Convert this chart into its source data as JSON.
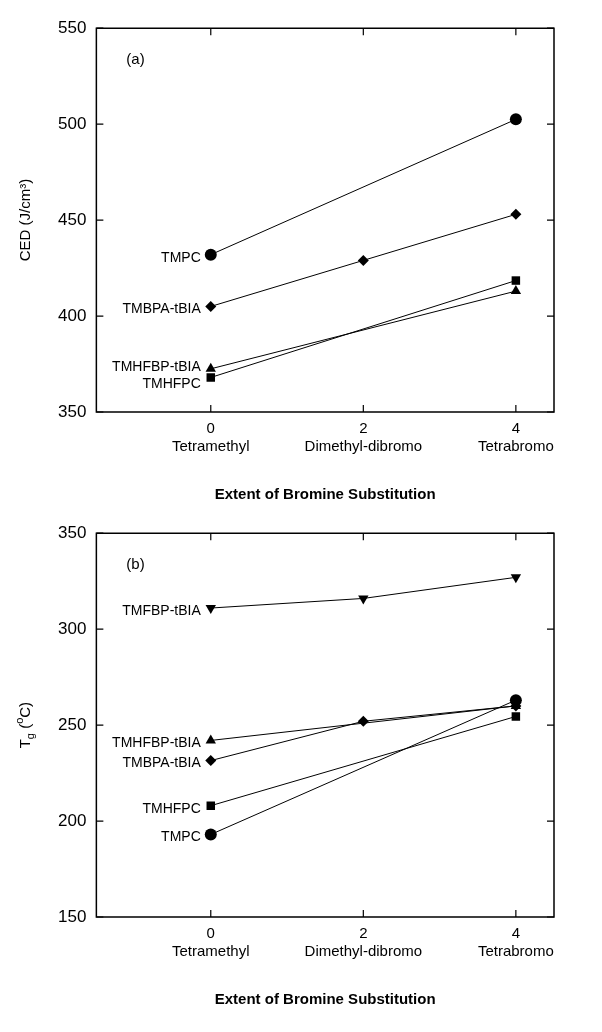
{
  "chart_data": [
    {
      "type": "line",
      "xlabel": "Extent of Bromine Substitution",
      "ylabel": "CED (J/cm³)",
      "annotations": [
        "(a)"
      ],
      "xlim": [
        -1.5,
        4.5
      ],
      "xticks": [
        {
          "value": 0,
          "label": "0\nTetramethyl"
        },
        {
          "value": 2,
          "label": "2\nDimethyl-dibromo"
        },
        {
          "value": 4,
          "label": "4\nTetrabromo"
        }
      ],
      "ylim": [
        350,
        550
      ],
      "yticks": [
        350,
        400,
        450,
        500,
        550
      ],
      "grid": false,
      "legend": false,
      "line_style": "solid",
      "series": [
        {
          "name": "TMPC",
          "color": "#000000",
          "marker": "circle",
          "x": [
            0,
            4
          ],
          "values": [
            432,
            502.5
          ]
        },
        {
          "name": "TMBPA-tBIA",
          "color": "#000000",
          "marker": "diamond",
          "x": [
            0,
            2,
            4
          ],
          "values": [
            405,
            429,
            453
          ]
        },
        {
          "name": "TMHFBP-tBIA",
          "color": "#000000",
          "marker": "triangle",
          "x": [
            0,
            4
          ],
          "values": [
            372.5,
            413
          ]
        },
        {
          "name": "TMHFPC",
          "color": "#000000",
          "marker": "square",
          "x": [
            0,
            4
          ],
          "values": [
            368,
            418.5
          ]
        }
      ]
    },
    {
      "type": "line",
      "xlabel": "Extent of Bromine Substitution",
      "ylabel": "T$_{g}$ ($^{o}$C)",
      "annotations": [
        "(b)"
      ],
      "xlim": [
        -1.5,
        4.5
      ],
      "xticks": [
        {
          "value": 0,
          "label": "0\nTetramethyl"
        },
        {
          "value": 2,
          "label": "2\nDimethyl-dibromo"
        },
        {
          "value": 4,
          "label": "4\nTetrabromo"
        }
      ],
      "ylim": [
        150,
        350
      ],
      "yticks": [
        150,
        200,
        250,
        300,
        350
      ],
      "grid": false,
      "legend": false,
      "line_style": "solid",
      "series": [
        {
          "name": "TMFBP-tBIA",
          "color": "#000000",
          "marker": "triangle-down",
          "x": [
            0,
            2,
            4
          ],
          "values": [
            311,
            316,
            327
          ]
        },
        {
          "name": "TMHFBP-tBIA",
          "color": "#000000",
          "marker": "triangle",
          "x": [
            0,
            4
          ],
          "values": [
            242,
            260
          ]
        },
        {
          "name": "TMBPA-tBIA",
          "color": "#000000",
          "marker": "diamond",
          "x": [
            0,
            2,
            4
          ],
          "values": [
            231.5,
            252,
            260
          ]
        },
        {
          "name": "TMHFPC",
          "color": "#000000",
          "marker": "square",
          "x": [
            0,
            4
          ],
          "values": [
            208,
            254.5
          ]
        },
        {
          "name": "TMPC",
          "color": "#000000",
          "marker": "circle",
          "x": [
            0,
            4
          ],
          "values": [
            193,
            263
          ]
        }
      ]
    }
  ]
}
